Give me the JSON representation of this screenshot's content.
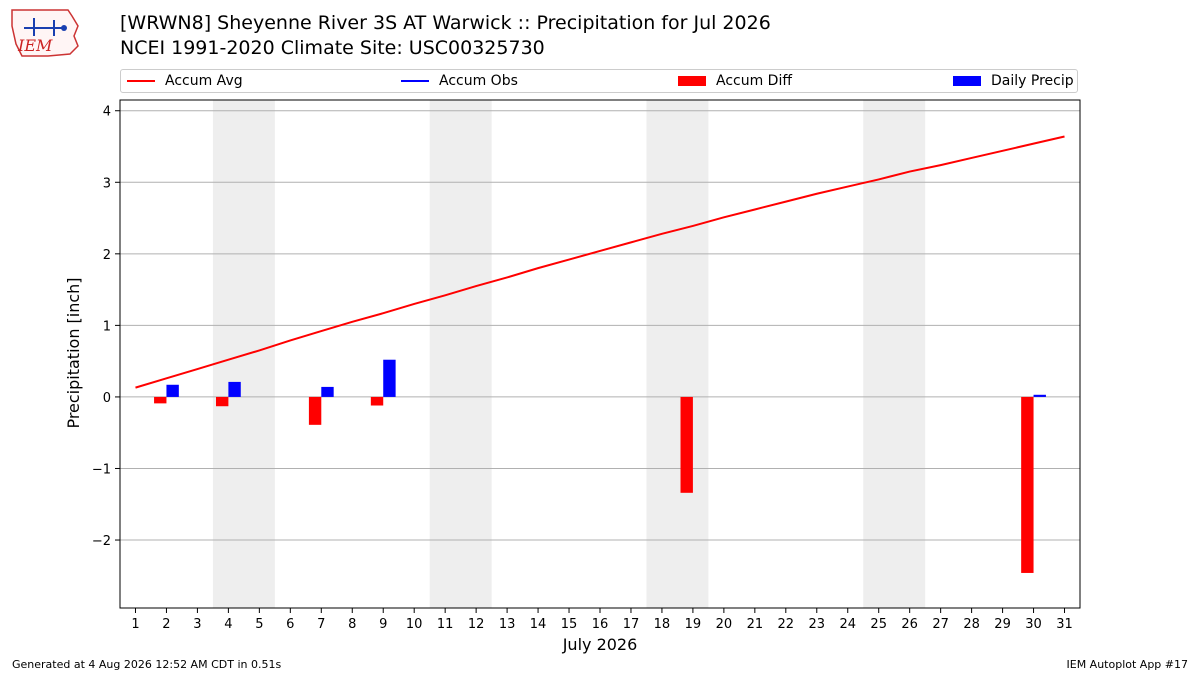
{
  "header": {
    "title": "[WRWN8] Sheyenne River 3S AT Warwick :: Precipitation for Jul 2026",
    "subtitle": "NCEI 1991-2020 Climate Site: USC00325730"
  },
  "logo": {
    "text": "IEM",
    "icon": "iem-logo-icon"
  },
  "legend": [
    {
      "label": "Accum Avg",
      "kind": "line",
      "color": "#ff0000"
    },
    {
      "label": "Accum Obs",
      "kind": "line",
      "color": "#0000ff"
    },
    {
      "label": "Accum Diff",
      "kind": "bar",
      "color": "#ff0000"
    },
    {
      "label": "Daily Precip",
      "kind": "bar",
      "color": "#0000ff"
    }
  ],
  "chart_data": {
    "type": "bar",
    "title": "[WRWN8] Sheyenne River 3S AT Warwick :: Precipitation for Jul 2026",
    "subtitle": "NCEI 1991-2020 Climate Site: USC00325730",
    "xlabel": "July 2026",
    "ylabel": "Precipitation [inch]",
    "x_ticks": [
      1,
      2,
      3,
      4,
      5,
      6,
      7,
      8,
      9,
      10,
      11,
      12,
      13,
      14,
      15,
      16,
      17,
      18,
      19,
      20,
      21,
      22,
      23,
      24,
      25,
      26,
      27,
      28,
      29,
      30,
      31
    ],
    "y_ticks": [
      -2,
      -1,
      0,
      1,
      2,
      3,
      4
    ],
    "y_tick_labels": [
      "−2",
      "−1",
      "0",
      "1",
      "2",
      "3",
      "4"
    ],
    "xlim": [
      0.5,
      31.5
    ],
    "ylim": [
      -2.95,
      4.15
    ],
    "grid": "horizontal",
    "weekend_shading": [
      [
        3.5,
        5.5
      ],
      [
        10.5,
        12.5
      ],
      [
        17.5,
        19.5
      ],
      [
        24.5,
        26.5
      ]
    ],
    "shade_color": "#eeeeee",
    "series": [
      {
        "name": "Accum Avg",
        "type": "line",
        "color": "#ff0000",
        "x": [
          1,
          2,
          3,
          4,
          5,
          6,
          7,
          8,
          9,
          10,
          11,
          12,
          13,
          14,
          15,
          16,
          17,
          18,
          19,
          20,
          21,
          22,
          23,
          24,
          25,
          26,
          27,
          28,
          29,
          30,
          31
        ],
        "values": [
          0.13,
          0.26,
          0.39,
          0.52,
          0.65,
          0.79,
          0.92,
          1.05,
          1.17,
          1.3,
          1.42,
          1.55,
          1.67,
          1.8,
          1.92,
          2.04,
          2.16,
          2.28,
          2.39,
          2.51,
          2.62,
          2.73,
          2.84,
          2.94,
          3.04,
          3.15,
          3.24,
          3.34,
          3.44,
          3.54,
          3.64
        ]
      },
      {
        "name": "Accum Diff",
        "type": "bar",
        "color": "#ff0000",
        "x": [
          2,
          4,
          7,
          9,
          19,
          30
        ],
        "values": [
          -0.09,
          -0.13,
          -0.39,
          -0.12,
          -1.34,
          -2.46
        ]
      },
      {
        "name": "Daily Precip",
        "type": "bar",
        "color": "#0000ff",
        "x": [
          2,
          4,
          7,
          9,
          30
        ],
        "values": [
          0.17,
          0.21,
          0.14,
          0.52,
          0.03
        ]
      }
    ]
  },
  "footer": {
    "left": "Generated at 4 Aug 2026 12:52 AM CDT in 0.51s",
    "right": "IEM Autoplot App #17"
  }
}
